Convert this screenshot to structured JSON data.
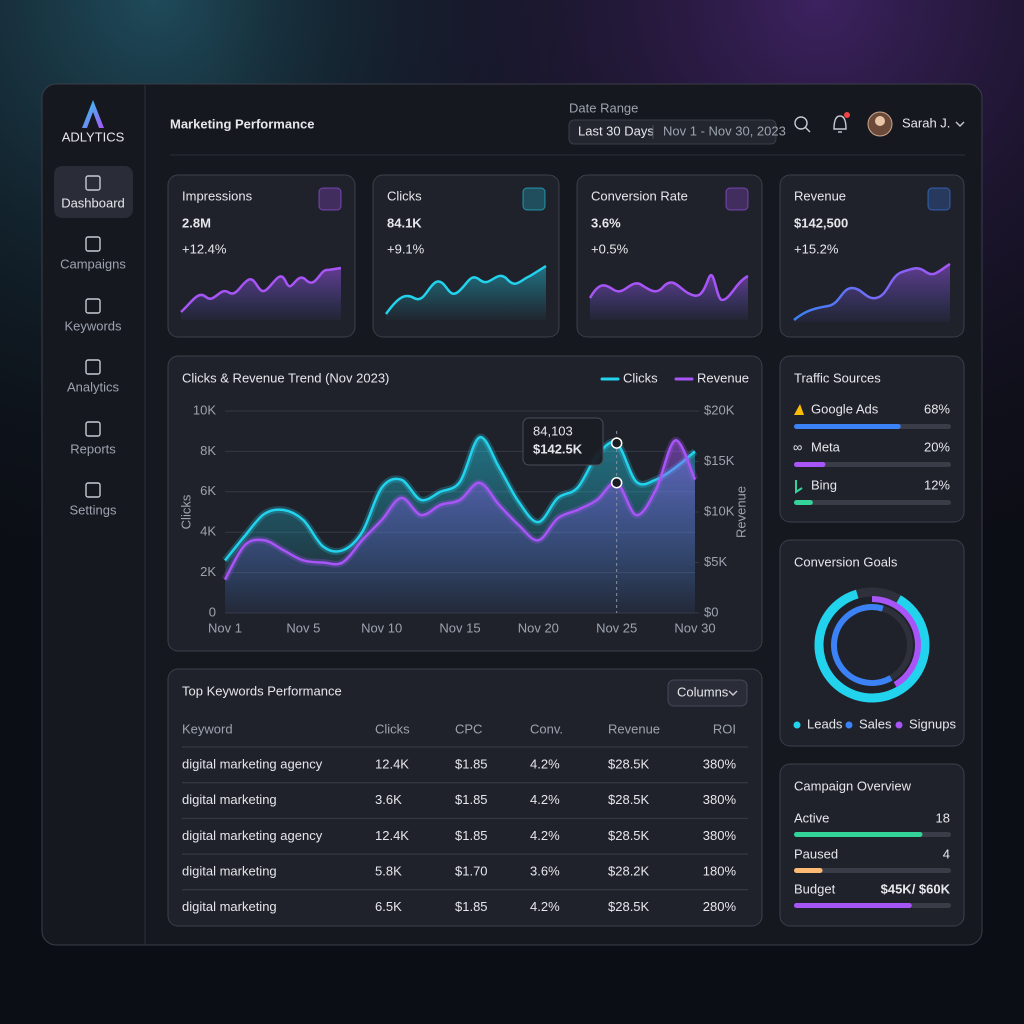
{
  "brand": "ADLYTICS",
  "nav": [
    "Dashboard",
    "Campaigns",
    "Keywords",
    "Analytics",
    "Reports",
    "Settings"
  ],
  "header": {
    "title": "Marketing Performance",
    "date_range_label": "Date Range",
    "preset": "Last 30 Days",
    "dates": "Nov 1 - Nov 30, 2023",
    "user": "Sarah J."
  },
  "kpis": [
    {
      "label": "Impressions",
      "value": "2.8M",
      "change": "+12.4%"
    },
    {
      "label": "Clicks",
      "value": "84.1K",
      "change": "+9.1%"
    },
    {
      "label": "Conversion Rate",
      "value": "3.6%",
      "change": "+0.5%"
    },
    {
      "label": "Revenue",
      "value": "$142,500",
      "change": "+15.2%"
    }
  ],
  "chart_data": {
    "type": "line",
    "title": "Clicks & Revenue Trend (Nov 2023)",
    "categories": [
      "Nov 1",
      null,
      null,
      null,
      "Nov 5",
      null,
      null,
      null,
      "Nov 10",
      null,
      null,
      null,
      "Nov 15",
      null,
      null,
      null,
      "Nov 20",
      null,
      null,
      null,
      "Nov 25",
      null,
      null,
      null,
      "Nov 30"
    ],
    "ylabel": "Clicks",
    "y2label": "Revenue",
    "ylim": [
      0,
      10000
    ],
    "yticks": [
      0,
      {
        "value": 2000,
        "label": "2K"
      },
      {
        "value": 4000,
        "label": "4K"
      },
      {
        "value": 6000,
        "label": "6K"
      },
      {
        "value": 8000,
        "label": "8K"
      },
      {
        "value": 10000,
        "label": "10K"
      }
    ],
    "y2lim": [
      0,
      20000
    ],
    "y2ticks": [
      {
        "value": 0,
        "label": "$0"
      },
      {
        "value": 5000,
        "label": "$5K"
      },
      {
        "value": 10000,
        "label": "$10K"
      },
      {
        "value": 15000,
        "label": "$15K"
      },
      {
        "value": 20000,
        "label": "$20K"
      }
    ],
    "grid": true,
    "series": [
      {
        "name": "Clicks",
        "color": "#22d3ee",
        "values": [
          2600,
          3800,
          4900,
          5100,
          4600,
          3300,
          3100,
          4000,
          6200,
          6600,
          5600,
          6000,
          6500,
          8700,
          7200,
          5500,
          4500,
          5700,
          6200,
          7800,
          8410,
          6500,
          6600,
          7200,
          8000
        ]
      },
      {
        "name": "Revenue",
        "color": "#a855f7",
        "axis": "y2",
        "values": [
          3300,
          6700,
          7200,
          6200,
          5200,
          5000,
          5000,
          7200,
          9200,
          11400,
          9700,
          10700,
          11200,
          12900,
          10700,
          8700,
          7200,
          9400,
          10200,
          11200,
          12900,
          9700,
          12200,
          17100,
          13200
        ]
      }
    ],
    "annotations": [
      "84,103",
      "$142.5K"
    ]
  },
  "traffic_sources": {
    "title": "Traffic Sources",
    "items": [
      {
        "name": "Google Ads",
        "value": 68,
        "label": "68%",
        "color": "#3b82f6"
      },
      {
        "name": "Meta",
        "value": 20,
        "label": "20%",
        "color": "#a855f7"
      },
      {
        "name": "Bing",
        "value": 12,
        "label": "12%",
        "color": "#34d399"
      }
    ]
  },
  "conversion_goals": {
    "title": "Conversion Goals",
    "legend": [
      {
        "name": "Leads",
        "color": "#22d3ee"
      },
      {
        "name": "Sales",
        "color": "#3b82f6"
      },
      {
        "name": "Signups",
        "color": "#a855f7"
      }
    ]
  },
  "campaign_overview": {
    "title": "Campaign Overview",
    "items": [
      {
        "name": "Active",
        "value": 18,
        "color": "#34d399"
      },
      {
        "name": "Paused",
        "value": 4,
        "color": "#fdba74"
      }
    ],
    "budget": {
      "name": "Budget",
      "spent": 45000,
      "total": 60000,
      "label": "$45K/ $60K",
      "color": "#a855f7"
    }
  },
  "keywords": {
    "title": "Top Keywords Performance",
    "button": "Columns",
    "columns": [
      "Keyword",
      "Clicks",
      "CPC",
      "Conv.",
      "Revenue",
      "ROI"
    ],
    "rows": [
      [
        "digital marketing agency",
        "12.4K",
        "$1.85",
        "4.2%",
        "$28.5K",
        "380%"
      ],
      [
        "digital marketing",
        "3.6K",
        "$1.85",
        "4.2%",
        "$28.5K",
        "380%"
      ],
      [
        "digital marketing agency",
        "12.4K",
        "$1.85",
        "4.2%",
        "$28.5K",
        "380%"
      ],
      [
        "digital marketing",
        "5.8K",
        "$1.70",
        "3.6%",
        "$28.2K",
        "180%"
      ],
      [
        "digital marketing",
        "6.5K",
        "$1.85",
        "4.2%",
        "$28.5K",
        "280%"
      ]
    ]
  }
}
